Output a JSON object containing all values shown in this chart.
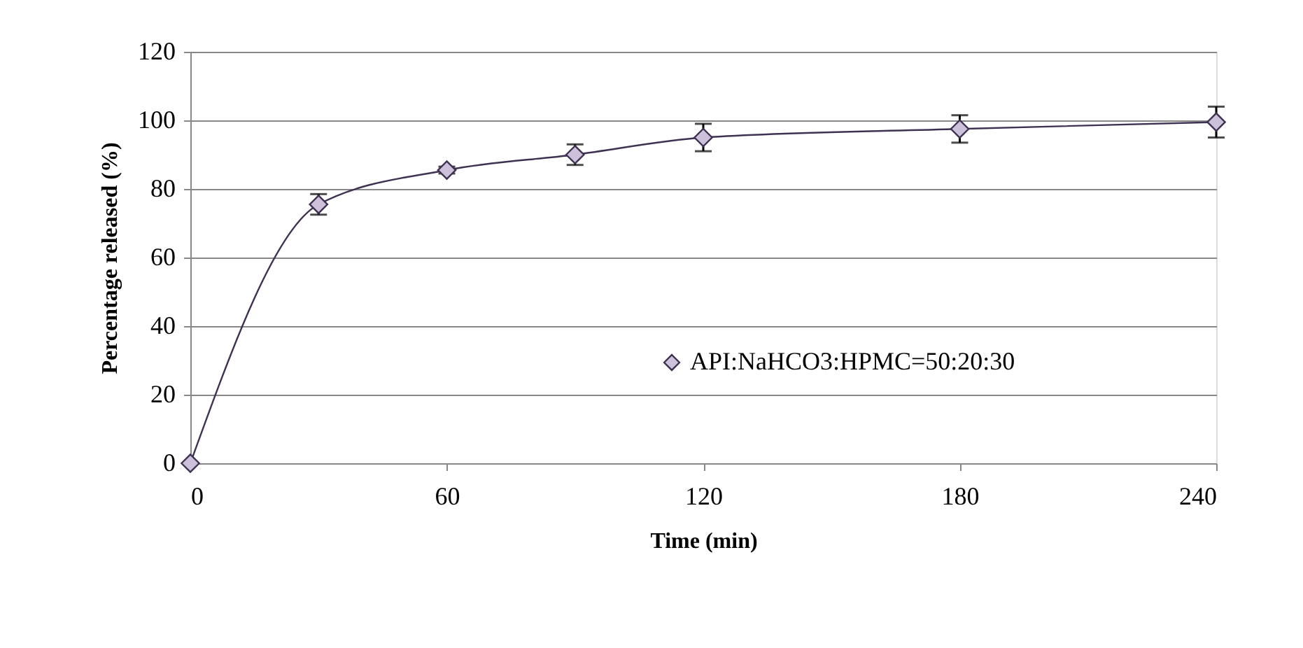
{
  "chart_data": {
    "type": "line",
    "xlabel": "Time (min)",
    "ylabel": "Percentage released (%)",
    "x": [
      0,
      30,
      60,
      90,
      120,
      180,
      240
    ],
    "series": [
      {
        "name": "API:NaHCO3:HPMC=50:20:30",
        "color": "#3f3151",
        "values": [
          0,
          75.5,
          85.5,
          90,
          95,
          97.5,
          99.5
        ],
        "errors": [
          null,
          3,
          1,
          3,
          4,
          4,
          4.5
        ]
      }
    ],
    "xlim": [
      0,
      240
    ],
    "xticks": [
      0,
      60,
      120,
      180,
      240
    ],
    "ylim": [
      0,
      120
    ],
    "yticks": [
      0,
      20,
      40,
      60,
      80,
      100,
      120
    ],
    "grid": "y",
    "legend": "right",
    "marker": "diamond",
    "line_style": "solid"
  }
}
